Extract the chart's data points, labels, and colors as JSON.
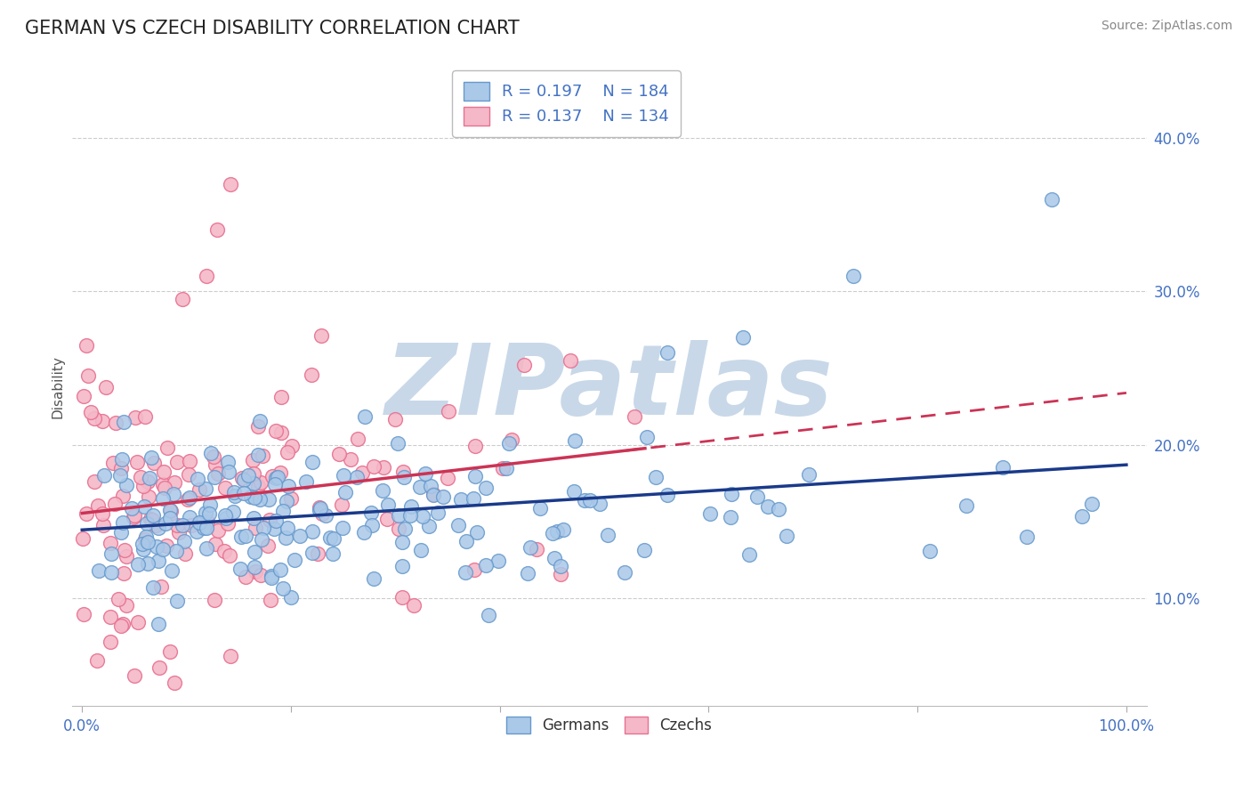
{
  "title": "GERMAN VS CZECH DISABILITY CORRELATION CHART",
  "source": "Source: ZipAtlas.com",
  "ylabel": "Disability",
  "xlim": [
    -0.01,
    1.02
  ],
  "ylim": [
    0.03,
    0.445
  ],
  "yticks": [
    0.1,
    0.2,
    0.3,
    0.4
  ],
  "ytick_labels": [
    "10.0%",
    "20.0%",
    "30.0%",
    "40.0%"
  ],
  "xticks": [
    0.0,
    0.2,
    0.4,
    0.6,
    0.8,
    1.0
  ],
  "xtick_labels": [
    "0.0%",
    "",
    "",
    "",
    "",
    "100.0%"
  ],
  "german_R": 0.197,
  "german_N": 184,
  "czech_R": 0.137,
  "czech_N": 134,
  "german_scatter_color": "#aac8e8",
  "german_edge_color": "#6699cc",
  "czech_scatter_color": "#f4b8c8",
  "czech_edge_color": "#e87090",
  "blue_line_color": "#1a3a8a",
  "pink_line_color": "#cc3355",
  "grid_color": "#cccccc",
  "background_color": "#ffffff",
  "watermark_text": "ZIPatlas",
  "watermark_color": "#c8d8e8",
  "legend_label_german": "Germans",
  "legend_label_czech": "Czechs",
  "legend_box_color": "#4472c4",
  "title_color": "#222222",
  "source_color": "#888888",
  "axis_tick_color": "#4472c4"
}
